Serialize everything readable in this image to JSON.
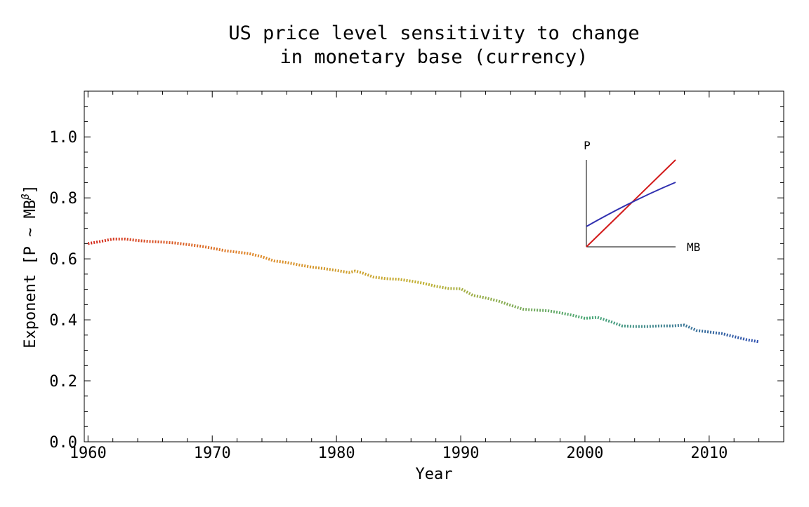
{
  "chart_data": {
    "type": "line",
    "title": "US price level sensitivity to change",
    "subtitle": "in monetary base (currency)",
    "xlabel": "Year",
    "ylabel": "Exponent [P ~ MB",
    "ylabel_sup": "β",
    "ylabel_end": "]",
    "xlim": [
      1959.7,
      2016
    ],
    "ylim": [
      0,
      1.15
    ],
    "xticks": [
      1960,
      1970,
      1980,
      1990,
      2000,
      2010
    ],
    "xminorticks": [
      1962,
      1964,
      1966,
      1968,
      1972,
      1974,
      1976,
      1978,
      1982,
      1984,
      1986,
      1988,
      1992,
      1994,
      1996,
      1998,
      2002,
      2004,
      2006,
      2008,
      2012,
      2014
    ],
    "yticks": [
      {
        "value": 0,
        "label": "0.0"
      },
      0.2,
      0.4,
      0.6,
      0.8,
      {
        "value": 1,
        "label": "1.0"
      }
    ],
    "yminorticks": [
      0.05,
      0.1,
      0.15,
      0.25,
      0.3,
      0.35,
      0.45,
      0.5,
      0.55,
      0.65,
      0.7,
      0.75,
      0.85,
      0.9,
      0.95,
      1.05,
      1.1
    ],
    "series": [
      {
        "gradient": [
          "#d42a1e",
          "#e08a2a",
          "#c0b030",
          "#4aa878",
          "#2f50b0"
        ],
        "x": [
          1960,
          1961,
          1962,
          1963,
          1964,
          1965,
          1966,
          1967,
          1968,
          1969,
          1970,
          1971,
          1972,
          1973,
          1974,
          1975,
          1976,
          1977,
          1978,
          1979,
          1980,
          1981,
          1981.5,
          1982,
          1983,
          1984,
          1985,
          1986,
          1987,
          1988,
          1989,
          1990,
          1991,
          1992,
          1993,
          1994,
          1995,
          1996,
          1997,
          1998,
          1999,
          2000,
          2001,
          2002,
          2003,
          2004,
          2005,
          2006,
          2007,
          2008,
          2009,
          2010,
          2011,
          2012,
          2013,
          2014
        ],
        "values": [
          0.65,
          0.657,
          0.665,
          0.665,
          0.66,
          0.657,
          0.655,
          0.652,
          0.647,
          0.642,
          0.635,
          0.627,
          0.622,
          0.617,
          0.607,
          0.593,
          0.588,
          0.58,
          0.573,
          0.568,
          0.562,
          0.555,
          0.56,
          0.555,
          0.54,
          0.535,
          0.533,
          0.527,
          0.52,
          0.51,
          0.503,
          0.502,
          0.48,
          0.472,
          0.462,
          0.448,
          0.435,
          0.432,
          0.43,
          0.423,
          0.415,
          0.405,
          0.408,
          0.395,
          0.38,
          0.378,
          0.378,
          0.38,
          0.38,
          0.383,
          0.365,
          0.36,
          0.355,
          0.345,
          0.335,
          0.328
        ]
      }
    ],
    "inset": {
      "y_label": "P",
      "x_label": "MB"
    }
  }
}
